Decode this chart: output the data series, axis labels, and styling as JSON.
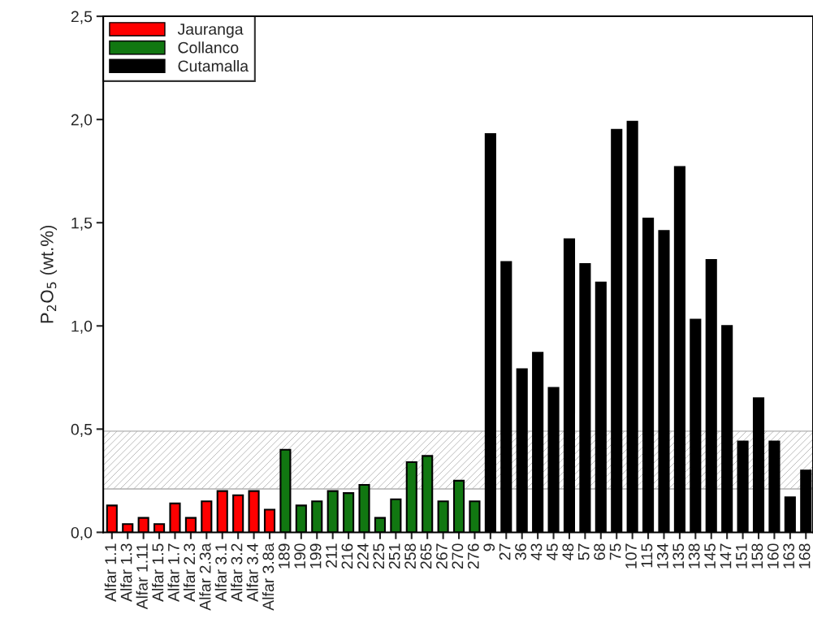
{
  "chart_data": {
    "type": "bar",
    "categories": [
      "Alfar 1.1",
      "Alfar 1.3",
      "Alfar 1.11",
      "Alfar 1.5",
      "Alfar 1.7",
      "Alfar 2.3",
      "Alfar 2.3a",
      "Alfar 3.1",
      "Alfar 3.2",
      "Alfar 3.4",
      "Alfar 3.8a",
      "189",
      "190",
      "199",
      "211",
      "216",
      "224",
      "225",
      "251",
      "258",
      "265",
      "267",
      "270",
      "276",
      "9",
      "27",
      "36",
      "43",
      "45",
      "48",
      "57",
      "68",
      "75",
      "107",
      "115",
      "134",
      "135",
      "138",
      "145",
      "147",
      "151",
      "158",
      "160",
      "163",
      "168"
    ],
    "series": [
      {
        "name": "Jauranga",
        "color": "#ff0000",
        "values": [
          0.13,
          0.04,
          0.07,
          0.04,
          0.14,
          0.07,
          0.15,
          0.2,
          0.18,
          0.2,
          0.11,
          null,
          null,
          null,
          null,
          null,
          null,
          null,
          null,
          null,
          null,
          null,
          null,
          null,
          null,
          null,
          null,
          null,
          null,
          null,
          null,
          null,
          null,
          null,
          null,
          null,
          null,
          null,
          null,
          null,
          null,
          null,
          null,
          null,
          null
        ]
      },
      {
        "name": "Collanco",
        "color": "#117711",
        "values": [
          null,
          null,
          null,
          null,
          null,
          null,
          null,
          null,
          null,
          null,
          null,
          0.4,
          0.13,
          0.15,
          0.2,
          0.19,
          0.23,
          0.07,
          0.16,
          0.34,
          0.37,
          0.15,
          0.25,
          0.15,
          null,
          null,
          null,
          null,
          null,
          null,
          null,
          null,
          null,
          null,
          null,
          null,
          null,
          null,
          null,
          null,
          null,
          null,
          null,
          null,
          null
        ]
      },
      {
        "name": "Cutamalla",
        "color": "#000000",
        "values": [
          null,
          null,
          null,
          null,
          null,
          null,
          null,
          null,
          null,
          null,
          null,
          null,
          null,
          null,
          null,
          null,
          null,
          null,
          null,
          null,
          null,
          null,
          null,
          null,
          1.93,
          1.31,
          0.79,
          0.87,
          0.7,
          1.42,
          1.3,
          1.21,
          1.95,
          1.99,
          1.52,
          1.46,
          1.77,
          1.03,
          1.32,
          1.0,
          0.44,
          0.65,
          0.44,
          0.17,
          0.3
        ]
      }
    ],
    "ylabel": "P$_{2}$O$_{5}$ (wt.%)",
    "ylim": [
      0,
      2.5
    ],
    "yticks": [
      {
        "value": 0,
        "label": "0,0"
      },
      {
        "value": 0.5,
        "label": "0,5"
      },
      {
        "value": 1.0,
        "label": "1,0"
      },
      {
        "value": 1.5,
        "label": "1,5"
      },
      {
        "value": 2.0,
        "label": "2,0"
      },
      {
        "value": 2.5,
        "label": "2,5"
      }
    ],
    "bands": [
      {
        "axis": "y",
        "from": 0.21,
        "to": 0.49,
        "color": "#b0b0b0"
      }
    ],
    "legend": "top left",
    "grid": false
  }
}
